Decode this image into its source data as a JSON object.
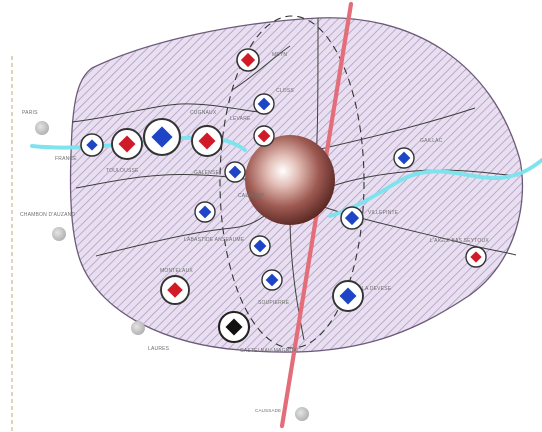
{
  "map": {
    "colors": {
      "hatch": "#b49ac4",
      "region_fill": "#e8e0f1",
      "river": "#7fe3ee",
      "railway": "#e46d7a",
      "boundary": "#444444",
      "blue_symbol": "#1d45c6",
      "red_symbol": "#d11a28",
      "black_symbol": "#111111",
      "gray_place": "#c4c4c4",
      "central_sphere": "#8a4a44"
    },
    "symbol_legend": {
      "gray-dot": "unmarked settlement outside region",
      "blue-diamond": "blue-coded settlement",
      "red-diamond": "red-coded settlement",
      "black-diamond": "black-coded settlement",
      "central-sphere": "main center"
    },
    "place_labels": {
      "north1": "MEYN",
      "north2": "CLOSS",
      "north_inner": "LEVARE",
      "west_river": "FRANCE",
      "west_mid1": "TOULOUSSE",
      "west_mid2": "CUGNAUX",
      "west_far_top": "PARIS",
      "west_far_mid": "CHAMBON D'AUZAND",
      "southwest1": "LABASTIDE ANSEAUME",
      "southwest2": "MONTELAUX",
      "south_inner": "SOUPIERRE",
      "south1": "CASTELNAU-MAGNOAC",
      "south2": "GALENSE",
      "south3": "CAUMONT",
      "east_top": "GAILLAC",
      "east_mid": "VILLEPINTE",
      "east_far": "L'AIGLE BAS SEYTOUX",
      "east_south": "LA DEVESE",
      "far_left_south": "LAURES",
      "railway_low": "CAUSSADE"
    }
  }
}
